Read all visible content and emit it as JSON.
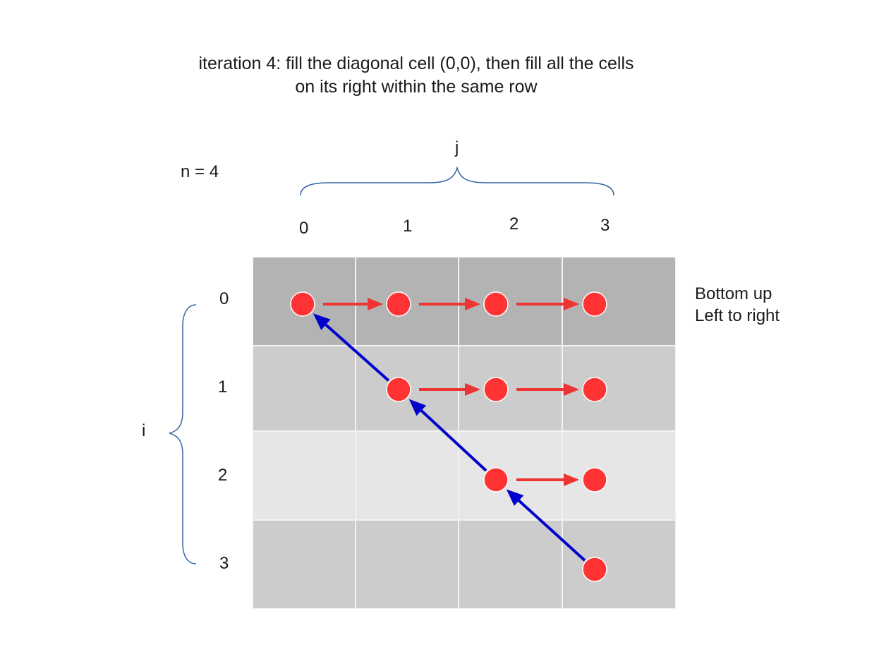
{
  "title": {
    "line1": "iteration 4: fill the diagonal cell (0,0), then fill all the cells",
    "line2": "on its right within the same row"
  },
  "n_label": "n = 4",
  "j_label": "j",
  "i_label": "i",
  "col_labels": [
    "0",
    "1",
    "2",
    "3"
  ],
  "row_labels": [
    "0",
    "1",
    "2",
    "3"
  ],
  "note": {
    "line1": "Bottom up",
    "line2": "Left to right"
  },
  "colors": {
    "row0": "#b3b3b3",
    "row1": "#cccccc",
    "row2": "#e6e6e6",
    "row3": "#cccccc",
    "dot": "#ff3333",
    "fill_arrow": "#ee3333",
    "diag_arrow": "#0000cc",
    "brace": "#3465a4"
  },
  "filled_cells": [
    [
      0,
      0
    ],
    [
      0,
      1
    ],
    [
      0,
      2
    ],
    [
      0,
      3
    ],
    [
      1,
      1
    ],
    [
      1,
      2
    ],
    [
      1,
      3
    ],
    [
      2,
      2
    ],
    [
      2,
      3
    ],
    [
      3,
      3
    ]
  ],
  "fill_arrows": [
    {
      "from": [
        0,
        0
      ],
      "to": [
        0,
        1
      ]
    },
    {
      "from": [
        0,
        1
      ],
      "to": [
        0,
        2
      ]
    },
    {
      "from": [
        0,
        2
      ],
      "to": [
        0,
        3
      ]
    },
    {
      "from": [
        1,
        1
      ],
      "to": [
        1,
        2
      ]
    },
    {
      "from": [
        1,
        2
      ],
      "to": [
        1,
        3
      ]
    },
    {
      "from": [
        2,
        2
      ],
      "to": [
        2,
        3
      ]
    }
  ],
  "diagonal_arrows": [
    {
      "from": [
        1,
        1
      ],
      "to": [
        0,
        0
      ]
    },
    {
      "from": [
        2,
        2
      ],
      "to": [
        1,
        1
      ]
    },
    {
      "from": [
        3,
        3
      ],
      "to": [
        2,
        2
      ]
    }
  ]
}
